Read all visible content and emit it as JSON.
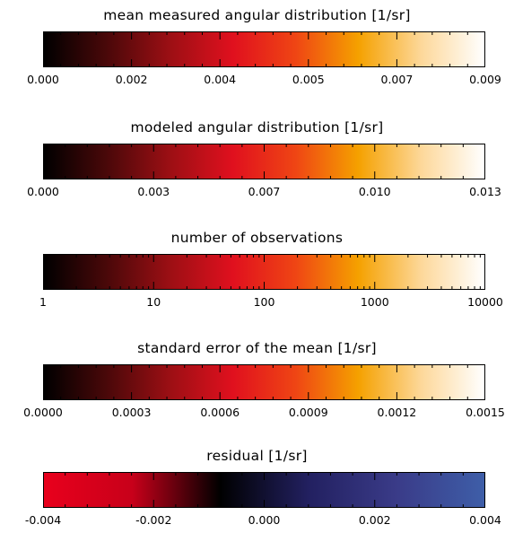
{
  "colors": {
    "heat_stops": [
      "#000000",
      "#4a0809",
      "#9c0f14",
      "#e0101e",
      "#ef4514",
      "#f5a100",
      "#fdd89a",
      "#ffffff"
    ],
    "diverging_stops": [
      "#e8001c",
      "#c8001a",
      "#000000",
      "#222060",
      "#3a3b88",
      "#3e5ea8"
    ]
  },
  "chart_data": [
    {
      "type": "colorbar",
      "title": "mean measured angular distribution [1/sr]",
      "colormap": "heat",
      "scale": "linear",
      "range": [
        0,
        0.009
      ],
      "tick_labels": [
        "0.000",
        "0.002",
        "0.004",
        "0.005",
        "0.007",
        "0.009"
      ],
      "tick_values": [
        0,
        0.0018,
        0.0036,
        0.0054,
        0.0072,
        0.009
      ],
      "minor_per_major": 4
    },
    {
      "type": "colorbar",
      "title": "modeled angular distribution [1/sr]",
      "colormap": "heat",
      "scale": "linear",
      "range": [
        0,
        0.013
      ],
      "tick_labels": [
        "0.000",
        "0.003",
        "0.007",
        "0.010",
        "0.013"
      ],
      "tick_values": [
        0,
        0.00325,
        0.0065,
        0.00975,
        0.013
      ],
      "minor_per_major": 4
    },
    {
      "type": "colorbar",
      "title": "number of observations",
      "colormap": "heat",
      "scale": "log",
      "range": [
        1,
        10000
      ],
      "tick_labels": [
        "1",
        "10",
        "100",
        "1000",
        "10000"
      ],
      "tick_values": [
        1,
        10,
        100,
        1000,
        10000
      ],
      "minor_per_major": 0
    },
    {
      "type": "colorbar",
      "title": "standard error of the mean [1/sr]",
      "colormap": "heat",
      "scale": "linear",
      "range": [
        0,
        0.0015
      ],
      "tick_labels": [
        "0.0000",
        "0.0003",
        "0.0006",
        "0.0009",
        "0.0012",
        "0.0015"
      ],
      "tick_values": [
        0,
        0.0003,
        0.0006,
        0.0009,
        0.0012,
        0.0015
      ],
      "minor_per_major": 4
    },
    {
      "type": "colorbar",
      "title": "residual [1/sr]",
      "colormap": "diverging",
      "scale": "linear",
      "range": [
        -0.004,
        0.004
      ],
      "tick_labels": [
        "-0.004",
        "-0.002",
        "0.000",
        "0.002",
        "0.004"
      ],
      "tick_values": [
        -0.004,
        -0.002,
        0,
        0.002,
        0.004
      ],
      "minor_per_major": 4
    }
  ]
}
